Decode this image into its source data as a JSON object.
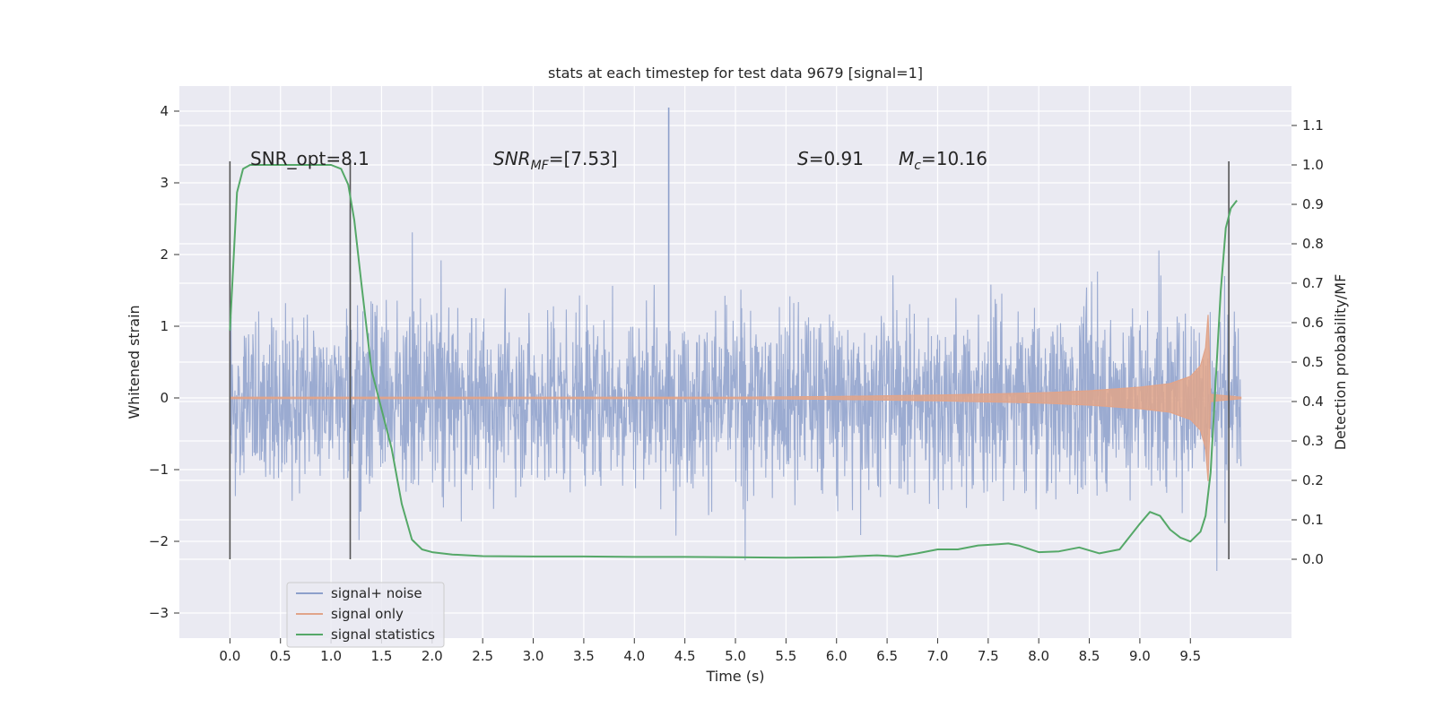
{
  "chart_data": {
    "type": "line",
    "title": "stats at each timestep for test data 9679 [signal=1]",
    "xlabel": "Time (s)",
    "ylabel": "Whitened strain",
    "ylabel_right": "Detection probability/MF",
    "xlim": [
      -0.5,
      10.5
    ],
    "ylim": [
      -3.35,
      4.35
    ],
    "ylim_right": [
      -0.2,
      1.2
    ],
    "x_ticks": [
      "0.0",
      "0.5",
      "1.0",
      "1.5",
      "2.0",
      "2.5",
      "3.0",
      "3.5",
      "4.0",
      "4.5",
      "5.0",
      "5.5",
      "6.0",
      "6.5",
      "7.0",
      "7.5",
      "8.0",
      "8.5",
      "9.0",
      "9.5"
    ],
    "y_ticks": [
      "4",
      "3",
      "2",
      "1",
      "0",
      "−1",
      "−2",
      "−3"
    ],
    "y_ticks_right": [
      "1.1",
      "1.0",
      "0.9",
      "0.8",
      "0.7",
      "0.6",
      "0.5",
      "0.4",
      "0.3",
      "0.2",
      "0.1",
      "0.0"
    ],
    "grid": true,
    "legend_placement": "lower-left",
    "annotations": {
      "snr_opt": "SNR_opt=8.1",
      "snr_mf_main": "SNR",
      "snr_mf_sub": "MF",
      "snr_mf_rest": "=[7.53]",
      "s_main": "S",
      "s_rest": "=0.91",
      "mc_main": "M",
      "mc_sub": "c",
      "mc_rest": "=10.16"
    },
    "vertical_markers": [
      0.0,
      1.19,
      9.88
    ],
    "series": [
      {
        "name": "signal+ noise",
        "color": "#8da0cb",
        "envelope_x": [
          0.0,
          10.0
        ],
        "envelope_y": [
          -2.5,
          3.5
        ],
        "peak_value": 4.05,
        "peak_x": 4.34
      },
      {
        "name": "signal only",
        "color": "#e1a48a",
        "x": [
          0.0,
          5.0,
          6.0,
          7.0,
          8.0,
          8.5,
          9.0,
          9.3,
          9.5,
          9.6,
          9.65,
          9.68,
          9.7,
          10.0
        ],
        "amplitude": [
          0.01,
          0.01,
          0.02,
          0.04,
          0.07,
          0.1,
          0.15,
          0.2,
          0.3,
          0.45,
          0.7,
          1.25,
          0.05,
          0.01
        ]
      },
      {
        "name": "signal statistics",
        "color": "#55a868",
        "axis": "right",
        "x": [
          0.0,
          0.07,
          0.13,
          0.2,
          0.3,
          0.5,
          0.7,
          0.9,
          1.0,
          1.1,
          1.17,
          1.23,
          1.3,
          1.4,
          1.5,
          1.6,
          1.7,
          1.8,
          1.9,
          2.0,
          2.2,
          2.5,
          3.0,
          3.5,
          4.0,
          4.5,
          5.0,
          5.5,
          6.0,
          6.2,
          6.4,
          6.6,
          6.8,
          7.0,
          7.2,
          7.4,
          7.6,
          7.7,
          7.8,
          8.0,
          8.2,
          8.4,
          8.6,
          8.8,
          9.0,
          9.1,
          9.2,
          9.3,
          9.4,
          9.5,
          9.6,
          9.65,
          9.7,
          9.75,
          9.8,
          9.85,
          9.9,
          9.96
        ],
        "y": [
          0.58,
          0.93,
          0.99,
          1.0,
          1.0,
          1.0,
          1.0,
          1.0,
          1.0,
          0.99,
          0.95,
          0.86,
          0.7,
          0.48,
          0.38,
          0.28,
          0.14,
          0.05,
          0.025,
          0.018,
          0.012,
          0.008,
          0.007,
          0.007,
          0.006,
          0.006,
          0.005,
          0.004,
          0.005,
          0.008,
          0.01,
          0.007,
          0.015,
          0.025,
          0.025,
          0.035,
          0.038,
          0.04,
          0.035,
          0.018,
          0.02,
          0.03,
          0.015,
          0.025,
          0.09,
          0.12,
          0.11,
          0.075,
          0.055,
          0.045,
          0.07,
          0.11,
          0.22,
          0.45,
          0.68,
          0.84,
          0.89,
          0.91
        ]
      }
    ]
  }
}
